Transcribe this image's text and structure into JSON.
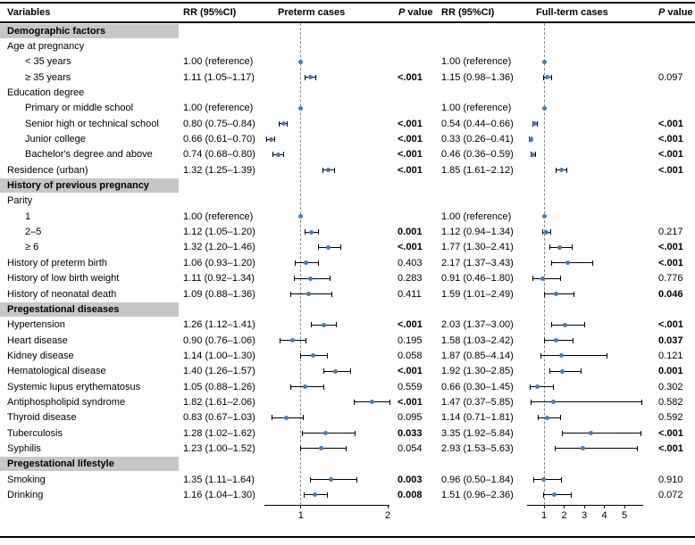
{
  "figure": {
    "columns": [
      "Variables",
      "RR (95%CI)",
      "Preterm cases",
      "P value",
      "RR (95%CI)",
      "Full-term cases",
      "P value"
    ]
  },
  "chart_data": {
    "type": "forest",
    "description": "Forest plot of relative risks (RR, 95% CI) for preterm cases and full-term cases by maternal characteristics",
    "accent_color": "#4a7bb0",
    "section_band_color": "#c7c7c7",
    "plots": [
      {
        "name": "Preterm cases",
        "xlim": [
          0.58,
          2.02
        ],
        "ticks": [
          1,
          2
        ],
        "ref_line": 1
      },
      {
        "name": "Full-term cases",
        "xlim": [
          0.15,
          5.93
        ],
        "ticks": [
          1,
          2,
          3,
          4,
          5
        ],
        "ref_line": 1
      }
    ],
    "rows": [
      {
        "type": "section",
        "label": "Demographic factors"
      },
      {
        "type": "label",
        "label": "Age at pregnancy",
        "indent": 0
      },
      {
        "type": "data",
        "label": "< 35 years",
        "indent": 1,
        "p1": {
          "text": "1.00 (reference)",
          "est": 1.0
        },
        "p2": {
          "text": "1.00 (reference)",
          "est": 1.0
        }
      },
      {
        "type": "data",
        "label": "≥ 35 years",
        "indent": 1,
        "p1": {
          "text": "1.11 (1.05–1.17)",
          "est": 1.11,
          "lo": 1.05,
          "hi": 1.17,
          "p": "<.001",
          "sig": true
        },
        "p2": {
          "text": "1.15 (0.98–1.36)",
          "est": 1.15,
          "lo": 0.98,
          "hi": 1.36,
          "p": "0.097",
          "sig": false
        }
      },
      {
        "type": "label",
        "label": "Education degree",
        "indent": 0
      },
      {
        "type": "data",
        "label": "Primary or middle school",
        "indent": 1,
        "p1": {
          "text": "1.00 (reference)",
          "est": 1.0
        },
        "p2": {
          "text": "1.00 (reference)",
          "est": 1.0
        }
      },
      {
        "type": "data",
        "label": "Senior high or technical school",
        "indent": 1,
        "p1": {
          "text": "0.80 (0.75–0.84)",
          "est": 0.8,
          "lo": 0.75,
          "hi": 0.84,
          "p": "<.001",
          "sig": true
        },
        "p2": {
          "text": "0.54 (0.44–0.66)",
          "est": 0.54,
          "lo": 0.44,
          "hi": 0.66,
          "p": "<.001",
          "sig": true
        }
      },
      {
        "type": "data",
        "label": "Junior college",
        "indent": 1,
        "p1": {
          "text": "0.66 (0.61–0.70)",
          "est": 0.66,
          "lo": 0.61,
          "hi": 0.7,
          "p": "<.001",
          "sig": true
        },
        "p2": {
          "text": "0.33 (0.26–0.41)",
          "est": 0.33,
          "lo": 0.26,
          "hi": 0.41,
          "p": "<.001",
          "sig": true
        }
      },
      {
        "type": "data",
        "label": "Bachelor's degree and above",
        "indent": 1,
        "p1": {
          "text": "0.74 (0.68–0.80)",
          "est": 0.74,
          "lo": 0.68,
          "hi": 0.8,
          "p": "<.001",
          "sig": true
        },
        "p2": {
          "text": "0.46 (0.36–0.59)",
          "est": 0.46,
          "lo": 0.36,
          "hi": 0.59,
          "p": "<.001",
          "sig": true
        }
      },
      {
        "type": "data",
        "label": "Residence (urban)",
        "indent": 0,
        "p1": {
          "text": "1.32 (1.25–1.39)",
          "est": 1.32,
          "lo": 1.25,
          "hi": 1.39,
          "p": "<.001",
          "sig": true
        },
        "p2": {
          "text": "1.85 (1.61–2.12)",
          "est": 1.85,
          "lo": 1.61,
          "hi": 2.12,
          "p": "<.001",
          "sig": true
        }
      },
      {
        "type": "section",
        "label": "History of previous pregnancy"
      },
      {
        "type": "label",
        "label": "Parity",
        "indent": 0
      },
      {
        "type": "data",
        "label": "1",
        "indent": 1,
        "p1": {
          "text": "1.00 (reference)",
          "est": 1.0
        },
        "p2": {
          "text": "1.00 (reference)",
          "est": 1.0
        }
      },
      {
        "type": "data",
        "label": "2–5",
        "indent": 1,
        "p1": {
          "text": "1.12 (1.05–1.20)",
          "est": 1.12,
          "lo": 1.05,
          "hi": 1.2,
          "p": "0.001",
          "sig": true
        },
        "p2": {
          "text": "1.12 (0.94–1.34)",
          "est": 1.12,
          "lo": 0.94,
          "hi": 1.34,
          "p": "0.217",
          "sig": false
        }
      },
      {
        "type": "data",
        "label": "≥ 6",
        "indent": 1,
        "p1": {
          "text": "1.32 (1.20–1.46)",
          "est": 1.32,
          "lo": 1.2,
          "hi": 1.46,
          "p": "<.001",
          "sig": true
        },
        "p2": {
          "text": "1.77 (1.30–2.41)",
          "est": 1.77,
          "lo": 1.3,
          "hi": 2.41,
          "p": "<.001",
          "sig": true
        }
      },
      {
        "type": "data",
        "label": "History of preterm birth",
        "indent": 0,
        "p1": {
          "text": "1.06 (0.93–1.20)",
          "est": 1.06,
          "lo": 0.93,
          "hi": 1.2,
          "p": "0.403",
          "sig": false
        },
        "p2": {
          "text": "2.17 (1.37–3.43)",
          "est": 2.17,
          "lo": 1.37,
          "hi": 3.43,
          "p": "<.001",
          "sig": true
        }
      },
      {
        "type": "data",
        "label": "History of low birth weight",
        "indent": 0,
        "p1": {
          "text": "1.11 (0.92–1.34)",
          "est": 1.11,
          "lo": 0.92,
          "hi": 1.34,
          "p": "0.283",
          "sig": false
        },
        "p2": {
          "text": "0.91 (0.46–1.80)",
          "est": 0.91,
          "lo": 0.46,
          "hi": 1.8,
          "p": "0.776",
          "sig": false
        }
      },
      {
        "type": "data",
        "label": "History of neonatal death",
        "indent": 0,
        "p1": {
          "text": "1.09 (0.88–1.36)",
          "est": 1.09,
          "lo": 0.88,
          "hi": 1.36,
          "p": "0.411",
          "sig": false
        },
        "p2": {
          "text": "1.59 (1.01–2.49)",
          "est": 1.59,
          "lo": 1.01,
          "hi": 2.49,
          "p": "0.046",
          "sig": true
        }
      },
      {
        "type": "section",
        "label": "Pregestational diseases"
      },
      {
        "type": "data",
        "label": "Hypertension",
        "indent": 0,
        "p1": {
          "text": "1.26 (1.12–1.41)",
          "est": 1.26,
          "lo": 1.12,
          "hi": 1.41,
          "p": "<.001",
          "sig": true
        },
        "p2": {
          "text": "2.03 (1.37–3.00)",
          "est": 2.03,
          "lo": 1.37,
          "hi": 3.0,
          "p": "<.001",
          "sig": true
        }
      },
      {
        "type": "data",
        "label": "Heart disease",
        "indent": 0,
        "p1": {
          "text": "0.90 (0.76–1.06)",
          "est": 0.9,
          "lo": 0.76,
          "hi": 1.06,
          "p": "0.195",
          "sig": false
        },
        "p2": {
          "text": "1.58 (1.03–2.42)",
          "est": 1.58,
          "lo": 1.03,
          "hi": 2.42,
          "p": "0.037",
          "sig": true
        }
      },
      {
        "type": "data",
        "label": "Kidney disease",
        "indent": 0,
        "p1": {
          "text": "1.14 (1.00–1.30)",
          "est": 1.14,
          "lo": 1.0,
          "hi": 1.3,
          "p": "0.058",
          "sig": false
        },
        "p2": {
          "text": "1.87 (0.85–4.14)",
          "est": 1.87,
          "lo": 0.85,
          "hi": 4.14,
          "p": "0.121",
          "sig": false
        }
      },
      {
        "type": "data",
        "label": "Hematological disease",
        "indent": 0,
        "p1": {
          "text": "1.40 (1.26–1.57)",
          "est": 1.4,
          "lo": 1.26,
          "hi": 1.57,
          "p": "<.001",
          "sig": true
        },
        "p2": {
          "text": "1.92 (1.30–2.85)",
          "est": 1.92,
          "lo": 1.3,
          "hi": 2.85,
          "p": "0.001",
          "sig": true
        }
      },
      {
        "type": "data",
        "label": "Systemic lupus erythematosus",
        "indent": 0,
        "p1": {
          "text": "1.05 (0.88–1.26)",
          "est": 1.05,
          "lo": 0.88,
          "hi": 1.26,
          "p": "0.559",
          "sig": false
        },
        "p2": {
          "text": "0.66 (0.30–1.45)",
          "est": 0.66,
          "lo": 0.3,
          "hi": 1.45,
          "p": "0.302",
          "sig": false
        }
      },
      {
        "type": "data",
        "label": "Antiphospholipid syndrome",
        "indent": 0,
        "p1": {
          "text": "1.82 (1.61–2.06)",
          "est": 1.82,
          "lo": 1.61,
          "hi": 2.06,
          "p": "<.001",
          "sig": true
        },
        "p2": {
          "text": "1.47 (0.37–5.85)",
          "est": 1.47,
          "lo": 0.37,
          "hi": 5.85,
          "p": "0.582",
          "sig": false
        }
      },
      {
        "type": "data",
        "label": "Thyroid disease",
        "indent": 0,
        "p1": {
          "text": "0.83 (0.67–1.03)",
          "est": 0.83,
          "lo": 0.67,
          "hi": 1.03,
          "p": "0.095",
          "sig": false
        },
        "p2": {
          "text": "1.14 (0.71–1.81)",
          "est": 1.14,
          "lo": 0.71,
          "hi": 1.81,
          "p": "0.592",
          "sig": false
        }
      },
      {
        "type": "data",
        "label": "Tuberculosis",
        "indent": 0,
        "p1": {
          "text": "1.28 (1.02–1.62)",
          "est": 1.28,
          "lo": 1.02,
          "hi": 1.62,
          "p": "0.033",
          "sig": true
        },
        "p2": {
          "text": "3.35 (1.92–5.84)",
          "est": 3.35,
          "lo": 1.92,
          "hi": 5.84,
          "p": "<.001",
          "sig": true
        }
      },
      {
        "type": "data",
        "label": "Syphilis",
        "indent": 0,
        "p1": {
          "text": "1.23 (1.00–1.52)",
          "est": 1.23,
          "lo": 1.0,
          "hi": 1.52,
          "p": "0.054",
          "sig": false
        },
        "p2": {
          "text": "2.93 (1.53–5.63)",
          "est": 2.93,
          "lo": 1.53,
          "hi": 5.63,
          "p": "<.001",
          "sig": true
        }
      },
      {
        "type": "section",
        "label": "Pregestational lifestyle"
      },
      {
        "type": "data",
        "label": "Smoking",
        "indent": 0,
        "p1": {
          "text": "1.35 (1.11–1.64)",
          "est": 1.35,
          "lo": 1.11,
          "hi": 1.64,
          "p": "0.003",
          "sig": true
        },
        "p2": {
          "text": "0.96 (0.50–1.84)",
          "est": 0.96,
          "lo": 0.5,
          "hi": 1.84,
          "p": "0.910",
          "sig": false
        }
      },
      {
        "type": "data",
        "label": "Drinking",
        "indent": 0,
        "p1": {
          "text": "1.16 (1.04–1.30)",
          "est": 1.16,
          "lo": 1.04,
          "hi": 1.3,
          "p": "0.008",
          "sig": true
        },
        "p2": {
          "text": "1.51 (0.96–2.36)",
          "est": 1.51,
          "lo": 0.96,
          "hi": 2.36,
          "p": "0.072",
          "sig": false
        }
      }
    ]
  }
}
